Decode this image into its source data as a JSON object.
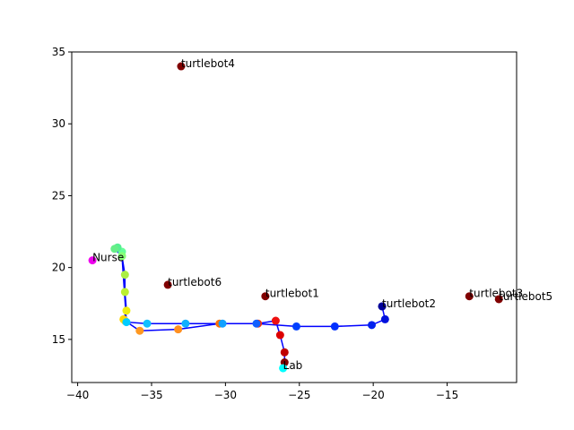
{
  "chart_data": {
    "type": "scatter",
    "title": "",
    "xlabel": "",
    "ylabel": "",
    "xlim": [
      -40.4,
      -10.3
    ],
    "ylim": [
      12.0,
      35.0
    ],
    "xticks": [
      -40,
      -35,
      -30,
      -25,
      -20,
      -15
    ],
    "yticks": [
      15,
      20,
      25,
      30,
      35
    ],
    "grid": false,
    "path": {
      "color": "#0000ff",
      "x": [
        -26.1,
        -26.0,
        -26.0,
        -26.3,
        -26.6,
        -27.8,
        -30.4,
        -33.2,
        -35.8,
        -36.8,
        -36.9,
        -36.7,
        -36.8,
        -36.8,
        -37.0,
        -37.0,
        -37.3,
        -37.5,
        -37.0,
        -36.7,
        -35.3,
        -32.7,
        -30.2,
        -27.9,
        -25.2,
        -22.6,
        -20.1,
        -19.2,
        -19.4
      ],
      "y": [
        13.0,
        13.4,
        14.1,
        15.3,
        16.3,
        16.1,
        16.1,
        15.7,
        15.6,
        16.3,
        16.4,
        17.0,
        18.3,
        19.5,
        20.8,
        21.1,
        21.4,
        21.3,
        20.8,
        16.2,
        16.1,
        16.1,
        16.1,
        16.1,
        15.9,
        15.9,
        16.0,
        16.4,
        17.3
      ]
    },
    "path_colors": [
      "#00ffff",
      "#800000",
      "#c00000",
      "#dd0000",
      "#ee1010",
      "#ff3000",
      "#ff7000",
      "#ff9020",
      "#ff9820",
      "#ffc010",
      "#ffd800",
      "#eeee10",
      "#bbf030",
      "#aaee44",
      "#80ff80",
      "#66ff99",
      "#55f090",
      "#66ee88",
      "#88ff77",
      "#00ccff",
      "#10c0ff",
      "#10b0ff",
      "#10a0ff",
      "#1060ff",
      "#0040ff",
      "#0030ff",
      "#0020ee",
      "#0010dd",
      "#000099"
    ],
    "named_points": [
      {
        "label": "turtlebot4",
        "x": -33.0,
        "y": 34.0,
        "color": "#800000"
      },
      {
        "label": "turtlebot6",
        "x": -33.9,
        "y": 18.8,
        "color": "#800000"
      },
      {
        "label": "turtlebot1",
        "x": -27.3,
        "y": 18.0,
        "color": "#800000"
      },
      {
        "label": "turtlebot2",
        "x": -19.4,
        "y": 17.3,
        "color": "#000099"
      },
      {
        "label": "turtlebot3",
        "x": -13.5,
        "y": 18.0,
        "color": "#800000"
      },
      {
        "label": "turtlebot5",
        "x": -11.5,
        "y": 17.8,
        "color": "#800000"
      },
      {
        "label": "Nurse",
        "x": -39.0,
        "y": 20.5,
        "color": "#ee00ee"
      },
      {
        "label": "Lab",
        "x": -26.1,
        "y": 13.0,
        "color": "#00ffff"
      }
    ]
  }
}
